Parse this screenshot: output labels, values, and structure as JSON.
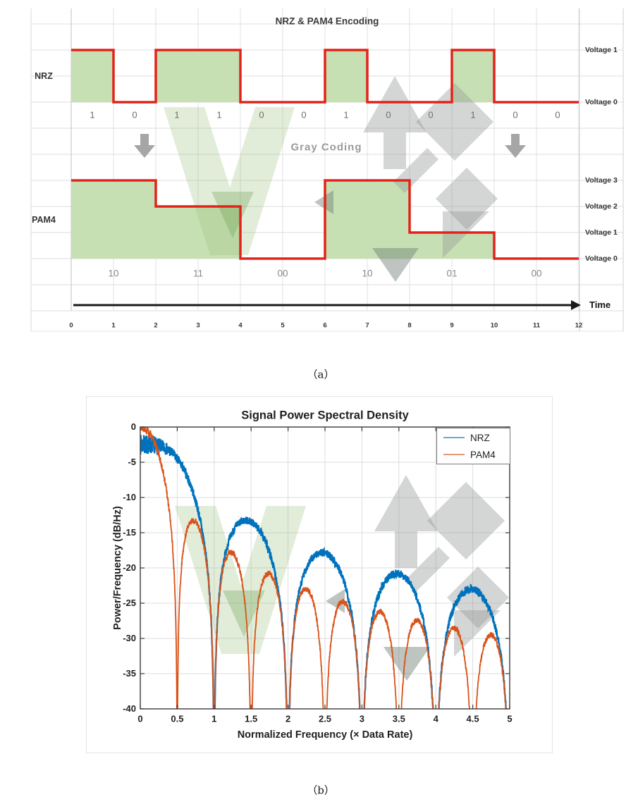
{
  "chart_data": [
    {
      "type": "line",
      "subtype": "digital-waveform-diagram",
      "title": "NRZ & PAM4 Encoding",
      "annotation": "Gray Coding",
      "xlabel": "Time",
      "xticks": [
        0,
        1,
        2,
        3,
        4,
        5,
        6,
        7,
        8,
        9,
        10,
        11,
        12
      ],
      "series": [
        {
          "name": "NRZ",
          "bits": [
            "1",
            "0",
            "1",
            "1",
            "0",
            "0",
            "1",
            "0",
            "0",
            "1",
            "0",
            "0"
          ],
          "bit_values": [
            1,
            0,
            1,
            1,
            0,
            0,
            1,
            0,
            0,
            1,
            0,
            0
          ],
          "level_labels": [
            "Voltage 1",
            "Voltage 0"
          ]
        },
        {
          "name": "PAM4",
          "symbols": [
            "10",
            "11",
            "00",
            "10",
            "01",
            "00"
          ],
          "symbol_levels": [
            3,
            2,
            0,
            3,
            1,
            0
          ],
          "level_labels": [
            "Voltage 3",
            "Voltage 2",
            "Voltage 1",
            "Voltage 0"
          ]
        }
      ],
      "colors": {
        "waveform": "#e2231a",
        "bit_fill": "#c6e0b4",
        "grid": "#dcdcdc",
        "arrow": "#a6a6a6"
      }
    },
    {
      "type": "line",
      "title": "Signal Power Spectral Density",
      "xlabel": "Normalized Frequency (× Data Rate)",
      "ylabel": "Power/Frequency (dB/Hz)",
      "xlim": [
        0,
        5
      ],
      "ylim": [
        -40,
        0
      ],
      "xticks": [
        0,
        0.5,
        1,
        1.5,
        2,
        2.5,
        3,
        3.5,
        4,
        4.5,
        5
      ],
      "yticks": [
        0,
        -5,
        -10,
        -15,
        -20,
        -25,
        -30,
        -35,
        -40
      ],
      "grid": true,
      "legend": {
        "position": "northeast",
        "entries": [
          "NRZ",
          "PAM4"
        ]
      },
      "series": [
        {
          "name": "NRZ",
          "color": "#0072BD",
          "psd_model": "sinc2",
          "null_spacing": 1.0,
          "nulls": [
            1,
            2,
            3,
            4,
            5
          ],
          "lobe_peaks": [
            {
              "x": 0,
              "y": -2.5
            },
            {
              "x": 1.5,
              "y": -14.5
            },
            {
              "x": 2.5,
              "y": -19.5
            },
            {
              "x": 3.5,
              "y": -22.5
            },
            {
              "x": 4.5,
              "y": -24.5
            }
          ]
        },
        {
          "name": "PAM4",
          "color": "#D95319",
          "psd_model": "sinc2",
          "null_spacing": 0.5,
          "nulls": [
            0.5,
            1,
            1.5,
            2,
            2.5,
            3,
            3.5,
            4,
            4.5,
            5
          ],
          "lobe_peaks": [
            {
              "x": 0,
              "y": 0
            },
            {
              "x": 0.75,
              "y": -12
            },
            {
              "x": 1.25,
              "y": -16
            },
            {
              "x": 1.75,
              "y": -19.5
            },
            {
              "x": 2.25,
              "y": -21.5
            },
            {
              "x": 2.75,
              "y": -23
            },
            {
              "x": 3.25,
              "y": -25
            },
            {
              "x": 3.75,
              "y": -26.5
            },
            {
              "x": 4.25,
              "y": -27.5
            },
            {
              "x": 4.75,
              "y": -28.5
            }
          ]
        }
      ]
    }
  ],
  "captions": {
    "a": "（a）",
    "b": "（b）"
  },
  "watermark": {
    "letter_color": "rgba(150,190,120,0.28)",
    "letter_dark": "rgba(110,160,80,0.32)",
    "logo_color": "rgba(148,152,150,0.40)",
    "logo_dark": "rgba(110,125,112,0.45)"
  }
}
